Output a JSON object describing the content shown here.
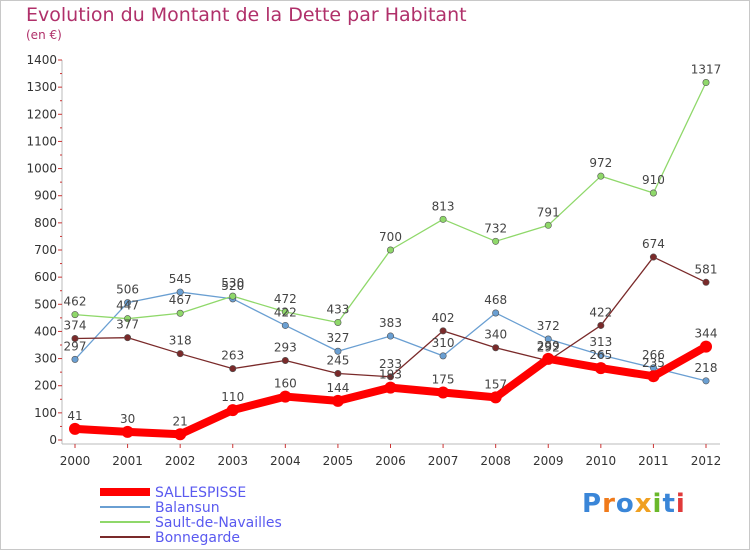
{
  "chart_data": {
    "type": "line",
    "title": "Evolution du Montant de la Dette par Habitant",
    "subtitle": "(en €)",
    "xlabel": "",
    "ylabel": "",
    "x": [
      "2000",
      "2001",
      "2002",
      "2003",
      "2004",
      "2005",
      "2006",
      "2007",
      "2008",
      "2009",
      "2010",
      "2011",
      "2012"
    ],
    "ylim": [
      0,
      1400
    ],
    "yticks": [
      0,
      100,
      200,
      300,
      400,
      500,
      600,
      700,
      800,
      900,
      1000,
      1100,
      1200,
      1300,
      1400
    ],
    "grid": false,
    "legend_position": "bottom-left",
    "series": [
      {
        "name": "SALLESPISSE",
        "color": "#ff0000",
        "values": [
          41,
          30,
          21,
          110,
          160,
          144,
          193,
          175,
          157,
          299,
          265,
          235,
          344
        ]
      },
      {
        "name": "Balansun",
        "color": "#6a9fd2",
        "values": [
          297,
          506,
          545,
          520,
          422,
          327,
          383,
          310,
          468,
          372,
          313,
          266,
          218
        ]
      },
      {
        "name": "Sault-de-Navailles",
        "color": "#8fd86a",
        "values": [
          462,
          447,
          467,
          530,
          472,
          433,
          700,
          813,
          732,
          791,
          972,
          910,
          1317
        ]
      },
      {
        "name": "Bonnegarde",
        "color": "#7a2a2a",
        "values": [
          374,
          377,
          318,
          263,
          293,
          245,
          233,
          402,
          340,
          292,
          422,
          674,
          581
        ]
      }
    ]
  },
  "logo": {
    "text": "Proxiti",
    "colors": [
      "#3a86d8",
      "#f07a1a",
      "#3a86d8",
      "#f0a020",
      "#6ab82a",
      "#3a86d8",
      "#e03a3a"
    ]
  }
}
